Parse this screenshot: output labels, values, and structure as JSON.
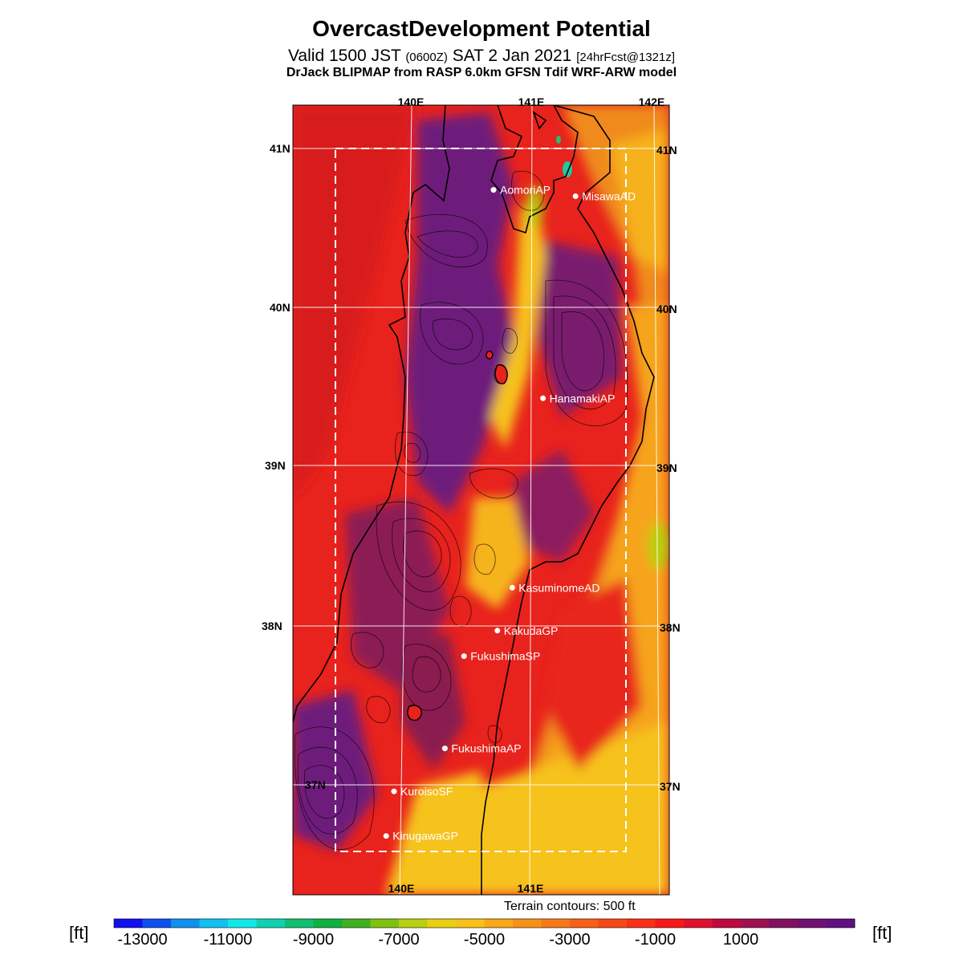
{
  "header": {
    "title": "OvercastDevelopment Potential",
    "valid_prefix": "Valid 1500 JST",
    "valid_zulu": "(0600Z)",
    "valid_date": "SAT 2 Jan 2021",
    "forecast": "[24hrFcst@1321z]",
    "model": "DrJack BLIPMAP from RASP 6.0km GFSN Tdif WRF-ARW model"
  },
  "map": {
    "lon_labels_top": [
      "140E",
      "141E",
      "142E"
    ],
    "lon_labels_bottom": [
      "140E",
      "141E"
    ],
    "lat_labels_left": [
      "41N",
      "40N",
      "39N",
      "38N",
      "37N"
    ],
    "lat_labels_right": [
      "41N",
      "40N",
      "39N",
      "38N",
      "37N"
    ],
    "terrain_note": "Terrain contours: 500 ft",
    "sites": [
      {
        "name": "AomoriAP",
        "lat": 40.74,
        "lon": 140.69
      },
      {
        "name": "MisawaAD",
        "lat": 40.7,
        "lon": 141.37
      },
      {
        "name": "HanamakiAP",
        "lat": 39.43,
        "lon": 141.14
      },
      {
        "name": "KasuminomeAD",
        "lat": 38.24,
        "lon": 140.93
      },
      {
        "name": "KakudaGP",
        "lat": 37.97,
        "lon": 140.82
      },
      {
        "name": "FukushimaSP",
        "lat": 37.81,
        "lon": 140.56
      },
      {
        "name": "FukushimaAP",
        "lat": 37.23,
        "lon": 140.43
      },
      {
        "name": "KuroisoSF",
        "lat": 36.96,
        "lon": 140.04
      },
      {
        "name": "KinugawaGP",
        "lat": 36.68,
        "lon": 139.99
      }
    ],
    "colors": {
      "land_red": "#e8221c",
      "purple": "#6e1d7c",
      "yellow": "#f6c21c",
      "orange": "#f08a1e"
    }
  },
  "colorbar": {
    "unit_left": "[ft]",
    "unit_right": "[ft]",
    "tick_labels": [
      "-13000",
      "-11000",
      "-9000",
      "-7000",
      "-5000",
      "-3000",
      "-1000",
      "1000"
    ],
    "colors": [
      "#1010f0",
      "#1050f0",
      "#1090f0",
      "#10c0f0",
      "#10e8e8",
      "#10d0b0",
      "#10c070",
      "#10b040",
      "#40b020",
      "#80c010",
      "#b8d010",
      "#e8d010",
      "#f8c018",
      "#f8a818",
      "#f89018",
      "#f87818",
      "#f86018",
      "#f84818",
      "#f83018",
      "#f81818",
      "#e01030",
      "#c00840",
      "#a01050",
      "#801060",
      "#701070",
      "#601080"
    ]
  }
}
